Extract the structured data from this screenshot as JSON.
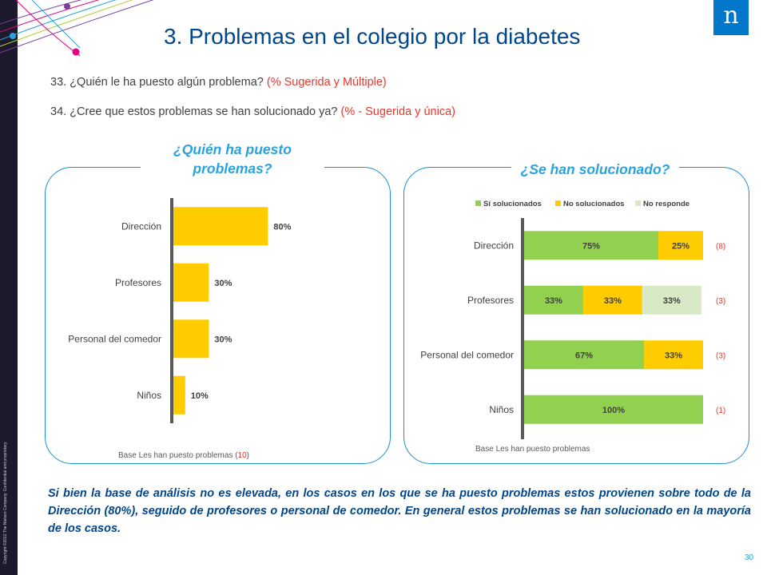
{
  "slide": {
    "title": "3. Problemas en el colegio por la diabetes",
    "logo_letter": "n",
    "copyright": "Copyright ©2012 The Nielsen Company. Confidential and proprietary.",
    "page_number": "30"
  },
  "questions": {
    "q33": {
      "text": "33. ¿Quién le ha puesto algún problema?",
      "hint": "(% Sugerida y Múltiple)"
    },
    "q34": {
      "text": "34. ¿Cree que estos problemas se han solucionado ya?",
      "hint": "(% - Sugerida y única)"
    }
  },
  "left_panel": {
    "title": "¿Quién ha puesto problemas?",
    "base_label": "Base Les han puesto problemas (",
    "base_n": "10",
    "base_close": ")"
  },
  "right_panel": {
    "title": "¿Se han solucionado?",
    "base_label": "Base Les han puesto problemas",
    "counts": [
      "(8)",
      "(3)",
      "(3)",
      "(1)"
    ]
  },
  "conclusion": "Si bien la base de análisis no es elevada, en los casos en los que se ha puesto problemas estos provienen sobre todo de la Dirección (80%), seguido de profesores o personal de comedor. En general estos problemas se han solucionado en la mayoría de los casos.",
  "colors": {
    "primary": "#00468c",
    "accent": "#29a3dd",
    "hint": "#e8372b",
    "yellow": "#ffcc00",
    "green": "#92d050",
    "light_green": "#d8e9c6",
    "axis": "#595959"
  },
  "chart_data": [
    {
      "type": "bar",
      "orientation": "horizontal",
      "categories": [
        "Dirección",
        "Profesores",
        "Personal del comedor",
        "Niños"
      ],
      "values": [
        80,
        30,
        30,
        10
      ],
      "labels": [
        "80%",
        "30%",
        "30%",
        "10%"
      ],
      "xlim": [
        0,
        100
      ]
    },
    {
      "type": "bar",
      "orientation": "horizontal",
      "stacked": true,
      "legend_position": "top",
      "categories": [
        "Dirección",
        "Profesores",
        "Personal del comedor",
        "Niños"
      ],
      "series": [
        {
          "name": "Sí solucionados",
          "values": [
            75,
            33,
            67,
            100
          ],
          "labels": [
            "75%",
            "33%",
            "67%",
            "100%"
          ]
        },
        {
          "name": "No solucionados",
          "values": [
            25,
            33,
            33,
            0
          ],
          "labels": [
            "25%",
            "33%",
            "33%",
            ""
          ]
        },
        {
          "name": "No responde",
          "values": [
            0,
            33,
            0,
            0
          ],
          "labels": [
            "",
            "33%",
            "",
            ""
          ]
        }
      ],
      "xlim": [
        0,
        100
      ]
    }
  ]
}
